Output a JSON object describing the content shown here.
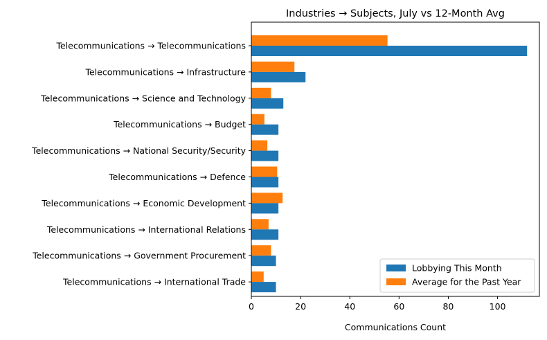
{
  "chart_data": {
    "type": "bar",
    "orientation": "horizontal",
    "title": "Industries → Subjects, July vs 12-Month Avg",
    "xlabel": "Communications Count",
    "ylabel": "",
    "xlim": [
      0,
      117
    ],
    "xticks": [
      0,
      20,
      40,
      60,
      80,
      100
    ],
    "categories": [
      "Telecommunications → Telecommunications",
      "Telecommunications → Infrastructure",
      "Telecommunications → Science and Technology",
      "Telecommunications → Budget",
      "Telecommunications → National Security/Security",
      "Telecommunications → Defence",
      "Telecommunications → Economic Development",
      "Telecommunications → International Relations",
      "Telecommunications → Government Procurement",
      "Telecommunications → International Trade"
    ],
    "series": [
      {
        "name": "Lobbying This Month",
        "color": "#1f77b4",
        "values": [
          112,
          22,
          13,
          11,
          11,
          11,
          11,
          11,
          10,
          10
        ]
      },
      {
        "name": "Average for the Past Year",
        "color": "#ff7f0e",
        "values": [
          55.3,
          17.5,
          8,
          5.3,
          6.5,
          10.5,
          12.7,
          7,
          8,
          5
        ]
      }
    ],
    "legend": {
      "position": "lower-right"
    },
    "grid": false
  }
}
